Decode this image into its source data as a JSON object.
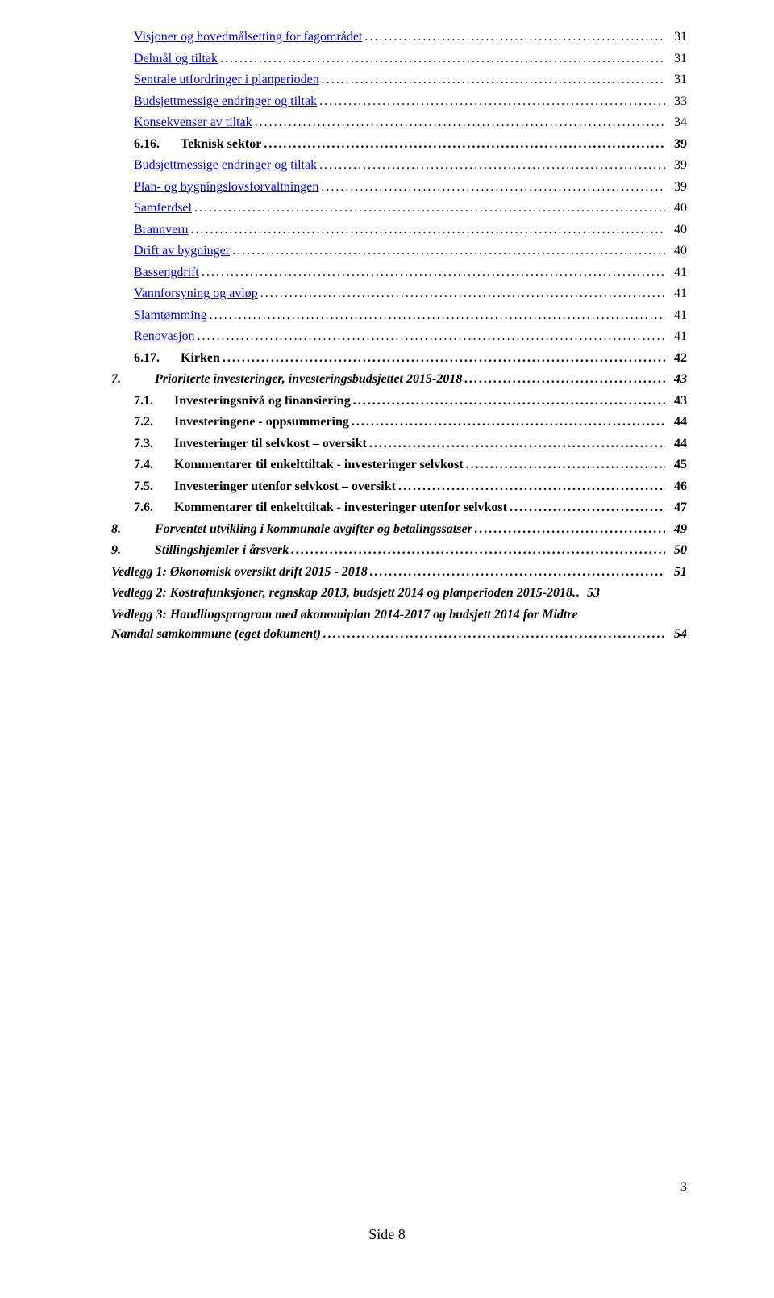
{
  "colors": {
    "text": "#000000",
    "link": "#0000ff",
    "background": "#ffffff"
  },
  "typography": {
    "font_family": "Times New Roman",
    "base_fontsize_pt": 12,
    "line_height": 1.5
  },
  "toc": [
    {
      "level": 2,
      "link": true,
      "text": "Visjoner og hovedmålsetting for fagområdet",
      "page": "31",
      "bold": false,
      "italic": false
    },
    {
      "level": 2,
      "link": true,
      "text": "Delmål og tiltak",
      "page": "31",
      "bold": false,
      "italic": false
    },
    {
      "level": 2,
      "link": true,
      "text": "Sentrale utfordringer i planperioden",
      "page": "31",
      "bold": false,
      "italic": false
    },
    {
      "level": 2,
      "link": true,
      "text": "Budsjettmessige endringer og tiltak",
      "page": "33",
      "bold": false,
      "italic": false
    },
    {
      "level": 2,
      "link": true,
      "text": "Konsekvenser av tiltak",
      "page": "34",
      "bold": false,
      "italic": false
    },
    {
      "level": 1,
      "link": false,
      "num": "6.16.",
      "text": "Teknisk sektor",
      "page": "39",
      "bold": true,
      "italic": false
    },
    {
      "level": 2,
      "link": true,
      "text": "Budsjettmessige endringer og tiltak",
      "page": "39",
      "bold": false,
      "italic": false
    },
    {
      "level": 2,
      "link": true,
      "text": "Plan- og bygningslovsforvaltningen",
      "page": "39",
      "bold": false,
      "italic": false
    },
    {
      "level": 2,
      "link": true,
      "text": "Samferdsel",
      "page": "40",
      "bold": false,
      "italic": false
    },
    {
      "level": 2,
      "link": true,
      "text": "Brannvern",
      "page": "40",
      "bold": false,
      "italic": false
    },
    {
      "level": 2,
      "link": true,
      "text": "Drift av bygninger",
      "page": "40",
      "bold": false,
      "italic": false
    },
    {
      "level": 2,
      "link": true,
      "text": "Bassengdrift",
      "page": "41",
      "bold": false,
      "italic": false
    },
    {
      "level": 2,
      "link": true,
      "text": "Vannforsyning og avløp",
      "page": "41",
      "bold": false,
      "italic": false
    },
    {
      "level": 2,
      "link": true,
      "text": "Slamtømming",
      "page": "41",
      "bold": false,
      "italic": false
    },
    {
      "level": 2,
      "link": true,
      "text": "Renovasjon",
      "page": "41",
      "bold": false,
      "italic": false
    },
    {
      "level": 1,
      "link": false,
      "num": "6.17.",
      "text": "Kirken",
      "page": "42",
      "bold": true,
      "italic": false
    },
    {
      "level": 0,
      "link": false,
      "num": "7.",
      "text": "Prioriterte investeringer, investeringsbudsjettet 2015-2018",
      "page": "43",
      "bold": true,
      "italic": true,
      "gap": "md"
    },
    {
      "level": 1,
      "link": false,
      "num": "7.1.",
      "text": "Investeringsnivå og finansiering",
      "page": "43",
      "bold": true,
      "italic": false
    },
    {
      "level": 1,
      "link": false,
      "num": "7.2.",
      "text": "Investeringene - oppsummering",
      "page": "44",
      "bold": true,
      "italic": false
    },
    {
      "level": 1,
      "link": false,
      "num": "7.3.",
      "text": "Investeringer til selvkost – oversikt",
      "page": "44",
      "bold": true,
      "italic": false
    },
    {
      "level": 1,
      "link": false,
      "num": "7.4.",
      "text": "Kommentarer til enkelttiltak - investeringer selvkost",
      "page": "45",
      "bold": true,
      "italic": false
    },
    {
      "level": 1,
      "link": false,
      "num": "7.5.",
      "text": "Investeringer utenfor selvkost – oversikt",
      "page": "46",
      "bold": true,
      "italic": false
    },
    {
      "level": 1,
      "link": false,
      "num": "7.6.",
      "text": "Kommentarer til enkelttiltak - investeringer utenfor selvkost",
      "page": "47",
      "bold": true,
      "italic": false
    },
    {
      "level": 0,
      "link": false,
      "num": "8.",
      "text": "Forventet utvikling i kommunale avgifter og betalingssatser",
      "page": "49",
      "bold": true,
      "italic": true,
      "gap": "md"
    },
    {
      "level": 0,
      "link": false,
      "num": "9.",
      "text": "Stillingshjemler i årsverk",
      "page": "50",
      "bold": true,
      "italic": true,
      "gap": "md"
    },
    {
      "level": 0,
      "link": false,
      "text": "Vedlegg 1: Økonomisk oversikt drift 2015 - 2018",
      "page": "51",
      "bold": true,
      "italic": true
    },
    {
      "level": 0,
      "link": false,
      "text": "Vedlegg 2: Kostrafunksjoner, regnskap 2013, budsjett 2014 og planperioden 2015-2018",
      "page": "53",
      "bold": true,
      "italic": true,
      "tight": true
    },
    {
      "level": 0,
      "link": false,
      "text": "Vedlegg 3: Handlingsprogram med økonomiplan 2014-2017 og budsjett 2014 for Midtre Namdal samkommune (eget dokument)",
      "page": "54",
      "bold": true,
      "italic": true,
      "wrap": true
    }
  ],
  "footer": {
    "page_number": "3",
    "side_label": "Side 8"
  }
}
